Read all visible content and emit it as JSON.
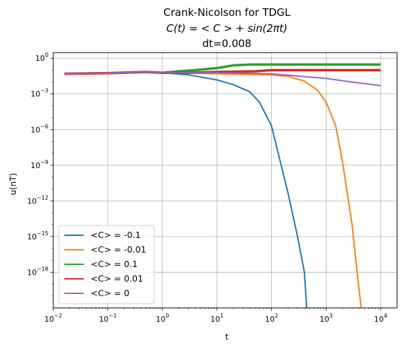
{
  "chart_data": {
    "type": "line",
    "title_lines": [
      "Crank-Nicolson for TDGL",
      "C(t) = < C > + sin(2πt)",
      "dt=0.008"
    ],
    "xlabel": "t",
    "ylabel": "u(nT)",
    "xscale": "log",
    "yscale": "log",
    "xlim": [
      0.01,
      20000
    ],
    "ylim": [
      1e-21,
      3
    ],
    "grid": true,
    "legend_position": "lower-left",
    "x_ticks": [
      {
        "label": "10",
        "exp": "−2"
      },
      {
        "label": "10",
        "exp": "−1"
      },
      {
        "label": "10",
        "exp": "0"
      },
      {
        "label": "10",
        "exp": "1"
      },
      {
        "label": "10",
        "exp": "2"
      },
      {
        "label": "10",
        "exp": "3"
      },
      {
        "label": "10",
        "exp": "4"
      }
    ],
    "y_ticks": [
      {
        "label": "10",
        "exp": "0"
      },
      {
        "label": "10",
        "exp": "−3"
      },
      {
        "label": "10",
        "exp": "−6"
      },
      {
        "label": "10",
        "exp": "−9"
      },
      {
        "label": "10",
        "exp": "−12"
      },
      {
        "label": "10",
        "exp": "−15"
      },
      {
        "label": "10",
        "exp": "−18"
      }
    ],
    "series": [
      {
        "name": "<C> = -0.1",
        "color": "#1f77b4",
        "points": [
          [
            0.016,
            0.05
          ],
          [
            0.1,
            0.055
          ],
          [
            0.5,
            0.07
          ],
          [
            1,
            0.06
          ],
          [
            3,
            0.04
          ],
          [
            10,
            0.015
          ],
          [
            20,
            0.006
          ],
          [
            40,
            0.0015
          ],
          [
            60,
            0.0002
          ],
          [
            100,
            2e-06
          ],
          [
            150,
            1e-09
          ],
          [
            200,
            5e-12
          ],
          [
            300,
            1e-15
          ],
          [
            400,
            1e-18
          ],
          [
            440,
            1e-21
          ]
        ]
      },
      {
        "name": "<C> = -0.01",
        "color": "#ff7f0e",
        "points": [
          [
            0.016,
            0.05
          ],
          [
            0.1,
            0.055
          ],
          [
            0.5,
            0.07
          ],
          [
            1,
            0.06
          ],
          [
            3,
            0.055
          ],
          [
            10,
            0.05
          ],
          [
            100,
            0.04
          ],
          [
            200,
            0.03
          ],
          [
            400,
            0.012
          ],
          [
            700,
            0.002
          ],
          [
            1000,
            0.0002
          ],
          [
            1500,
            2e-06
          ],
          [
            2000,
            2e-09
          ],
          [
            2500,
            2e-12
          ],
          [
            3000,
            1e-14
          ],
          [
            3500,
            1e-17
          ],
          [
            4400,
            1e-21
          ]
        ]
      },
      {
        "name": "<C> = 0.1",
        "color": "#2ca02c",
        "points": [
          [
            0.016,
            0.05
          ],
          [
            0.1,
            0.055
          ],
          [
            0.5,
            0.07
          ],
          [
            1,
            0.06
          ],
          [
            2,
            0.08
          ],
          [
            4,
            0.1
          ],
          [
            10,
            0.15
          ],
          [
            20,
            0.25
          ],
          [
            40,
            0.3
          ],
          [
            100,
            0.3
          ],
          [
            1000,
            0.3
          ],
          [
            10000,
            0.3
          ]
        ]
      },
      {
        "name": "<C> = 0.01",
        "color": "#d62728",
        "points": [
          [
            0.016,
            0.05
          ],
          [
            0.1,
            0.055
          ],
          [
            0.5,
            0.07
          ],
          [
            1,
            0.06
          ],
          [
            3,
            0.06
          ],
          [
            10,
            0.07
          ],
          [
            50,
            0.08
          ],
          [
            100,
            0.1
          ],
          [
            1000,
            0.1
          ],
          [
            10000,
            0.1
          ]
        ]
      },
      {
        "name": "<C> = 0",
        "color": "#9467bd",
        "points": [
          [
            0.016,
            0.05
          ],
          [
            0.1,
            0.055
          ],
          [
            0.5,
            0.07
          ],
          [
            1,
            0.06
          ],
          [
            3,
            0.06
          ],
          [
            10,
            0.06
          ],
          [
            100,
            0.05
          ],
          [
            1000,
            0.02
          ],
          [
            3000,
            0.01
          ],
          [
            10000,
            0.005
          ]
        ]
      }
    ]
  }
}
